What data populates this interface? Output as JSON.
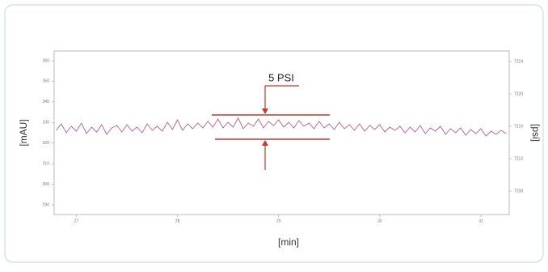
{
  "chart_data": {
    "type": "line",
    "ylabel": "[mAU]",
    "y2label": "[psi]",
    "xlabel": "[min]",
    "annotation": "5 PSI",
    "xlim": [
      26.78,
      31.28
    ],
    "xticks": [
      27,
      28,
      29,
      30,
      31
    ],
    "ylim": [
      285.3,
      364.7
    ],
    "yticks": [
      360,
      350,
      340,
      330,
      320,
      310,
      300,
      290
    ],
    "y2lim": [
      7205.1,
      7225.3
    ],
    "y2ticks": [
      7224,
      7220,
      7216,
      7212,
      7208
    ],
    "x": [
      26.8,
      26.85,
      26.9,
      26.95,
      27.0,
      27.05,
      27.1,
      27.15,
      27.2,
      27.25,
      27.3,
      27.35,
      27.4,
      27.45,
      27.5,
      27.55,
      27.6,
      27.65,
      27.7,
      27.75,
      27.8,
      27.85,
      27.9,
      27.95,
      28.0,
      28.05,
      28.1,
      28.15,
      28.2,
      28.25,
      28.3,
      28.35,
      28.4,
      28.45,
      28.5,
      28.55,
      28.6,
      28.65,
      28.7,
      28.75,
      28.8,
      28.85,
      28.9,
      28.95,
      29.0,
      29.05,
      29.1,
      29.15,
      29.2,
      29.25,
      29.3,
      29.35,
      29.4,
      29.45,
      29.5,
      29.55,
      29.6,
      29.65,
      29.7,
      29.75,
      29.8,
      29.85,
      29.9,
      29.95,
      30.0,
      30.05,
      30.1,
      30.15,
      30.2,
      30.25,
      30.3,
      30.35,
      30.4,
      30.45,
      30.5,
      30.55,
      30.6,
      30.65,
      30.7,
      30.75,
      30.8,
      30.85,
      30.9,
      30.95,
      31.0,
      31.05,
      31.1,
      31.15,
      31.2,
      31.25
    ],
    "series": [
      {
        "color": "#b3608f",
        "axis": "y2",
        "values": [
          7215.5,
          7216.3,
          7215.2,
          7216.0,
          7215.4,
          7216.4,
          7215.1,
          7215.9,
          7215.3,
          7216.2,
          7215.0,
          7215.8,
          7216.1,
          7215.3,
          7216.2,
          7215.4,
          7215.9,
          7215.2,
          7216.3,
          7215.5,
          7216.0,
          7215.4,
          7216.5,
          7215.6,
          7216.8,
          7215.5,
          7216.3,
          7215.7,
          7216.4,
          7215.8,
          7216.6,
          7215.9,
          7216.9,
          7215.8,
          7216.5,
          7215.9,
          7217.0,
          7215.7,
          7216.4,
          7216.0,
          7216.9,
          7215.8,
          7216.6,
          7216.1,
          7216.8,
          7215.9,
          7216.5,
          7215.8,
          7216.7,
          7216.0,
          7216.4,
          7215.7,
          7216.6,
          7215.8,
          7216.3,
          7215.6,
          7216.5,
          7215.7,
          7216.2,
          7215.5,
          7216.3,
          7215.4,
          7216.1,
          7215.6,
          7216.2,
          7215.3,
          7215.9,
          7215.5,
          7216.0,
          7215.2,
          7215.9,
          7215.3,
          7216.1,
          7215.1,
          7215.8,
          7215.4,
          7216.0,
          7215.0,
          7215.7,
          7215.2,
          7215.8,
          7214.9,
          7215.6,
          7215.1,
          7215.7,
          7214.8,
          7215.4,
          7215.0,
          7215.5,
          7215.1
        ]
      }
    ]
  }
}
